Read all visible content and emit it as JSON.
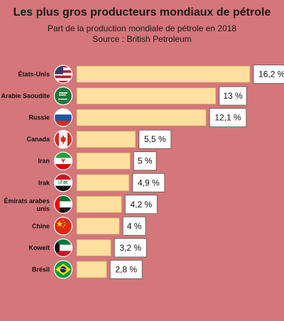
{
  "title": "Les plus gros producteurs mondiaux de pétrole",
  "subtitle": "Part de la production mondiale de pétrole en 2018",
  "source": "Source : British Petroleum",
  "colors": {
    "background": "#d4767a",
    "bar": "#fddf9e",
    "bar_stroke": "#c9a86a",
    "label_box": "#ffffff"
  },
  "chart_data": {
    "type": "bar",
    "orientation": "horizontal",
    "categories": [
      "États-Unis",
      "Arabie Saoudite",
      "Russie",
      "Canada",
      "Iran",
      "Irak",
      "Émirats arabes unis",
      "Chine",
      "Koweït",
      "Brésil"
    ],
    "values": [
      16.2,
      13,
      12.1,
      5.5,
      5,
      4.9,
      4.2,
      4,
      3.2,
      2.8
    ],
    "value_labels": [
      "16,2 %",
      "13 %",
      "12,1 %",
      "5,5 %",
      "5 %",
      "4,9 %",
      "4,2 %",
      "4 %",
      "3,2 %",
      "2,8 %"
    ],
    "flag_icons": [
      "flag-usa-icon",
      "flag-saudi-arabia-icon",
      "flag-russia-icon",
      "flag-canada-icon",
      "flag-iran-icon",
      "flag-iraq-icon",
      "flag-uae-icon",
      "flag-china-icon",
      "flag-kuwait-icon",
      "flag-brazil-icon"
    ],
    "unit": "%",
    "legend": "none",
    "grid": false
  }
}
